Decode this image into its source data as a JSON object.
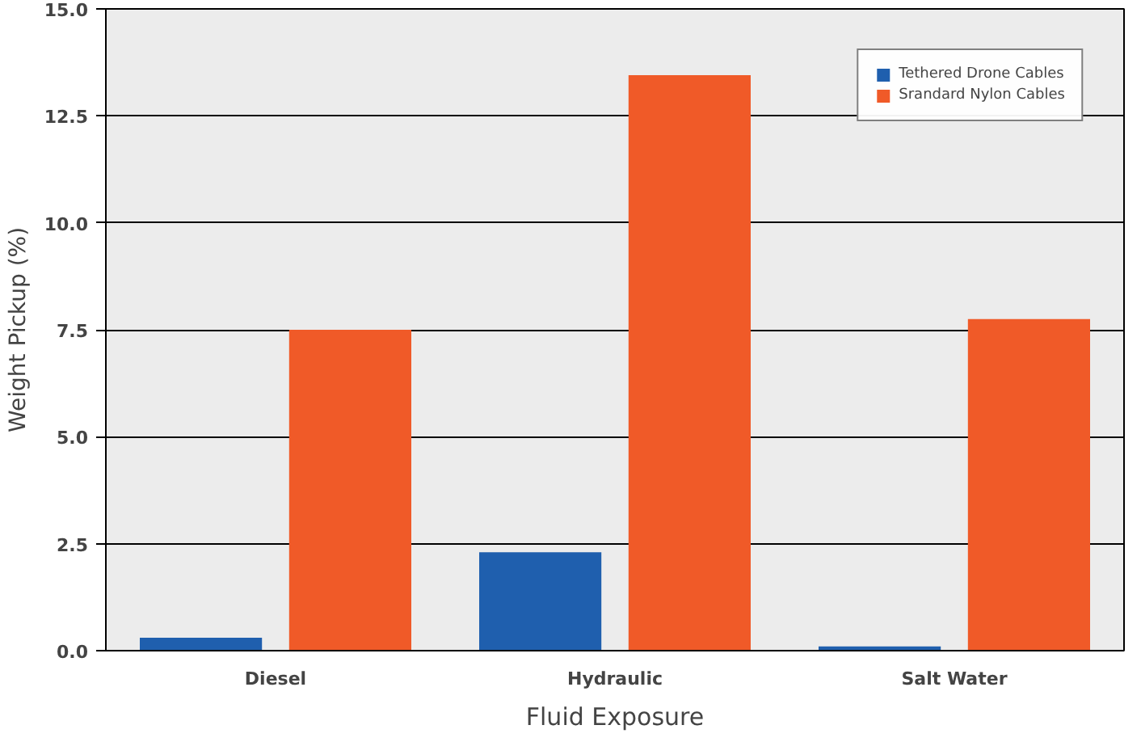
{
  "chart_data": {
    "type": "bar",
    "xlabel": "Fluid Exposure",
    "ylabel": "Weight Pickup (%)",
    "categories": [
      "Diesel",
      "Hydraulic",
      "Salt Water"
    ],
    "series": [
      {
        "name": "Tethered Drone Cables",
        "color": "#1f5fae",
        "values": [
          0.3,
          2.3,
          0.1
        ]
      },
      {
        "name": "Srandard Nylon Cables",
        "color": "#f05a28",
        "values": [
          7.5,
          13.45,
          7.75
        ]
      }
    ],
    "ylim": [
      0,
      15
    ],
    "yticks": [
      {
        "value": 0,
        "label": "0.0"
      },
      2.5,
      {
        "value": 5,
        "label": "5.0"
      },
      7.5,
      {
        "value": 10,
        "label": "10.0"
      },
      12.5,
      {
        "value": 15,
        "label": "15.0"
      }
    ],
    "grid": "y",
    "legend": "top right"
  }
}
